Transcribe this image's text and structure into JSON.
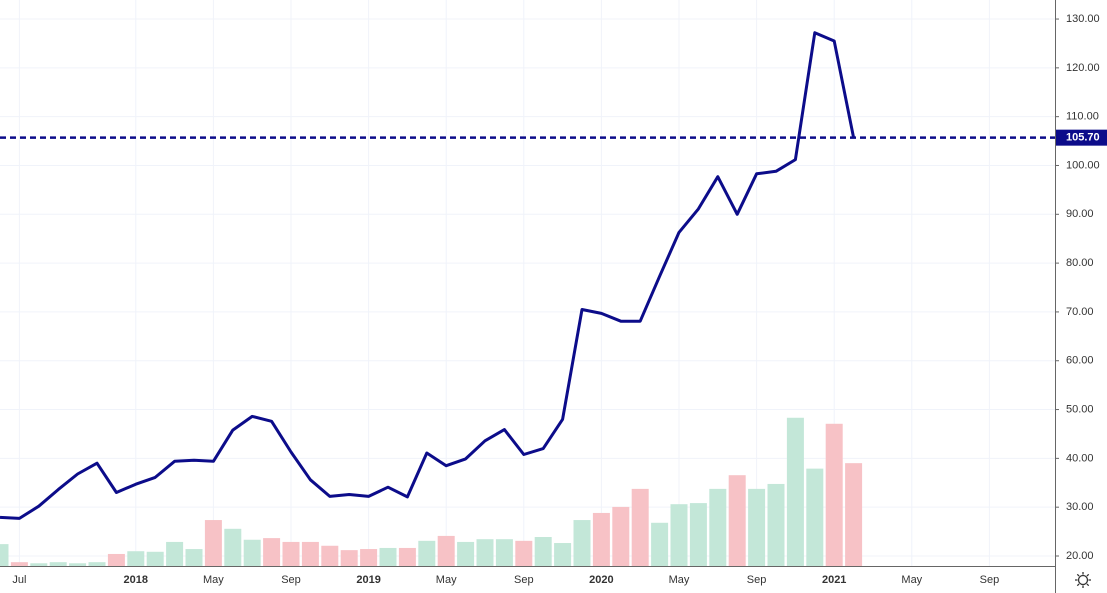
{
  "chart_data": {
    "type": "line",
    "categories": [
      null,
      "Jul",
      null,
      null,
      null,
      null,
      null,
      "2018",
      null,
      null,
      null,
      "May",
      null,
      null,
      null,
      "Sep",
      null,
      null,
      null,
      "2019",
      null,
      null,
      null,
      "May",
      null,
      null,
      null,
      "Sep",
      null,
      null,
      null,
      "2020",
      null,
      null,
      null,
      "May",
      null,
      null,
      null,
      "Sep",
      null,
      null,
      null,
      "2021",
      null,
      null,
      null,
      "May",
      null,
      null,
      null,
      "Sep"
    ],
    "series": [
      {
        "color": "#0c0c8a",
        "values": [
          27.9,
          27.7,
          30.2,
          33.6,
          36.8,
          39.0,
          33.0,
          34.7,
          36.1,
          39.4,
          39.6,
          39.4,
          45.8,
          48.6,
          47.6,
          41.3,
          35.6,
          32.2,
          32.6,
          32.2,
          34.1,
          32.1,
          41.1,
          38.5,
          39.9,
          43.6,
          45.9,
          40.8,
          42.0,
          48.0,
          70.5,
          69.7,
          68.1,
          68.1,
          77.3,
          86.3,
          91.1,
          97.7,
          90.0,
          98.3,
          98.8,
          101.2,
          127.2,
          125.5,
          105.7,
          null,
          null,
          null,
          null,
          null,
          null,
          null
        ]
      },
      {
        "type": "bar",
        "axis": "y2",
        "colors": [
          "#c3e7d8",
          "#f7c2c6",
          "#c3e7d8",
          "#c3e7d8",
          "#c3e7d8",
          "#c3e7d8",
          "#f7c2c6",
          "#c3e7d8",
          "#c3e7d8",
          "#c3e7d8",
          "#c3e7d8",
          "#f7c2c6",
          "#c3e7d8",
          "#c3e7d8",
          "#f7c2c6",
          "#f7c2c6",
          "#f7c2c6",
          "#f7c2c6",
          "#f7c2c6",
          "#f7c2c6",
          "#c3e7d8",
          "#f7c2c6",
          "#c3e7d8",
          "#f7c2c6",
          "#c3e7d8",
          "#c3e7d8",
          "#c3e7d8",
          "#f7c2c6",
          "#c3e7d8",
          "#c3e7d8",
          "#c3e7d8",
          "#f7c2c6",
          "#f7c2c6",
          "#f7c2c6",
          "#c3e7d8",
          "#c3e7d8",
          "#c3e7d8",
          "#c3e7d8",
          "#f7c2c6",
          "#c3e7d8",
          "#c3e7d8",
          "#c3e7d8",
          "#c3e7d8",
          "#f7c2c6",
          "#f7c2c6",
          null,
          null,
          null,
          null,
          null,
          null,
          null
        ],
        "values": [
          4.0,
          0.7,
          0.5,
          0.7,
          0.5,
          0.7,
          2.2,
          2.7,
          2.6,
          4.4,
          3.1,
          8.4,
          6.8,
          4.8,
          5.1,
          4.4,
          4.4,
          3.7,
          2.9,
          3.1,
          3.3,
          3.3,
          4.6,
          5.5,
          4.4,
          4.9,
          4.9,
          4.6,
          5.3,
          4.2,
          8.4,
          9.7,
          10.8,
          14.1,
          7.9,
          11.3,
          11.5,
          14.1,
          16.6,
          14.1,
          15.0,
          27.1,
          17.8,
          26.0,
          18.8,
          null,
          null,
          null,
          null,
          null,
          null,
          null
        ]
      }
    ],
    "last_price": {
      "value": 105.7,
      "label": "105.70",
      "color": "#0c0c8a"
    },
    "ylim": [
      17.95,
      133.9
    ],
    "yticks": [
      {
        "value": 20,
        "label": "20.00"
      },
      {
        "value": 30,
        "label": "30.00"
      },
      {
        "value": 40,
        "label": "40.00"
      },
      {
        "value": 50,
        "label": "50.00"
      },
      {
        "value": 60,
        "label": "60.00"
      },
      {
        "value": 70,
        "label": "70.00"
      },
      {
        "value": 80,
        "label": "80.00"
      },
      {
        "value": 90,
        "label": "90.00"
      },
      {
        "value": 100,
        "label": "100.00"
      },
      {
        "value": 110,
        "label": "110.00"
      },
      {
        "value": 120,
        "label": "120.00"
      },
      {
        "value": 130,
        "label": "130.00"
      }
    ],
    "y2lim": [
      0,
      100
    ],
    "grid": true
  }
}
